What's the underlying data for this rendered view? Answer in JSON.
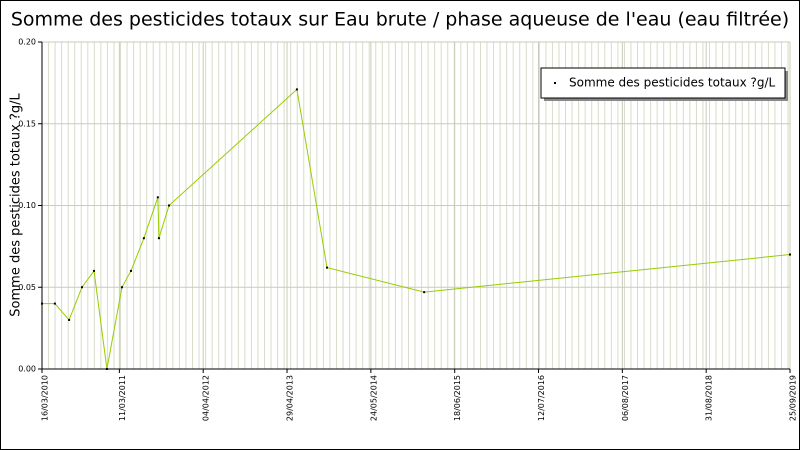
{
  "chart_data": {
    "type": "line",
    "title": "Somme des pesticides totaux sur Eau brute / phase aqueuse de l'eau (eau filtrée)",
    "y_label": "Somme des pesticides totaux ?g/L",
    "x": [
      "2010-03-16",
      "2010-05-15",
      "2010-07-20",
      "2010-09-18",
      "2010-11-13",
      "2011-01-12",
      "2011-03-23",
      "2011-05-04",
      "2011-07-03",
      "2011-09-06",
      "2011-09-11",
      "2011-10-28",
      "2013-06-14",
      "2013-11-01",
      "2015-01-27",
      "2019-09-25"
    ],
    "series": [
      {
        "name": "Somme des pesticides totaux ?g/L",
        "color": "#99cc00",
        "marker_color": "#000000",
        "values": [
          0.04,
          0.04,
          0.03,
          0.05,
          0.06,
          0.0,
          0.05,
          0.06,
          0.08,
          0.105,
          0.08,
          0.1,
          0.171,
          0.062,
          0.047,
          0.07
        ]
      }
    ],
    "xlim": [
      "2010-03-16",
      "2019-09-25"
    ],
    "xticks": [
      {
        "value": "2010-03-16",
        "label": "16/03/2010"
      },
      {
        "value": "2011-03-11",
        "label": "11/03/2011"
      },
      {
        "value": "2012-04-04",
        "label": "04/04/2012"
      },
      {
        "value": "2013-04-29",
        "label": "29/04/2013"
      },
      {
        "value": "2014-05-24",
        "label": "24/05/2014"
      },
      {
        "value": "2015-06-18",
        "label": "18/06/2015"
      },
      {
        "value": "2016-07-12",
        "label": "12/07/2016"
      },
      {
        "value": "2017-08-06",
        "label": "06/08/2017"
      },
      {
        "value": "2018-08-31",
        "label": "31/08/2018"
      },
      {
        "value": "2019-09-25",
        "label": "25/09/2019"
      }
    ],
    "ylim": [
      0,
      0.2
    ],
    "yticks": [
      {
        "value": 0,
        "label": "0.00"
      },
      {
        "value": 0.05,
        "label": "0.05"
      },
      {
        "value": 0.1,
        "label": "0.10"
      },
      {
        "value": 0.15,
        "label": "0.15"
      },
      {
        "value": 0.2,
        "label": "0.20"
      }
    ],
    "grid": true,
    "legend_position": "upper right"
  }
}
